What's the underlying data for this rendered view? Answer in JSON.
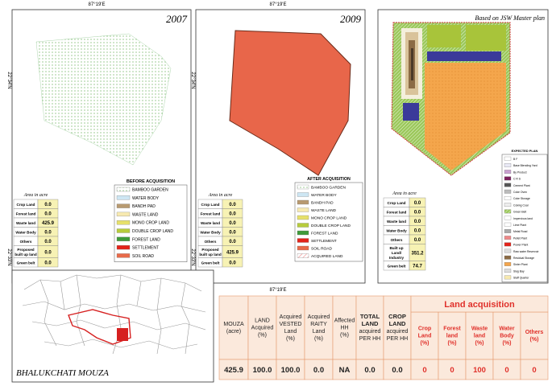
{
  "coords": {
    "lon": "87°19'E",
    "lat_north": "22°34'N",
    "lat_south": "22°33'N"
  },
  "panels": [
    {
      "title": "2007",
      "area_title": "Area in acre",
      "area_rows": [
        [
          "Crop Land",
          "0.0"
        ],
        [
          "Forest land",
          "0.0"
        ],
        [
          "Waste land",
          "425.9"
        ],
        [
          "Water Body",
          "0.0"
        ],
        [
          "Others",
          "0.0"
        ],
        [
          [
            "Proposed",
            "built up land"
          ],
          "0.0"
        ],
        [
          "Green belt",
          "0.0"
        ]
      ],
      "legend_title": "BEFORE ACQUISITION",
      "legend": [
        "BAMBOO GARDEN",
        "WATER BODY",
        "BANDH PAD",
        "WASTE LAND",
        "MONO CROP LAND",
        "DOUBLE CROP LAND",
        "FOREST LAND",
        "SETTLEMENT",
        "SOIL ROAD"
      ]
    },
    {
      "title": "2009",
      "area_title": "Area in acre",
      "area_rows": [
        [
          "Crop Land",
          "0.0"
        ],
        [
          "Forest land",
          "0.0"
        ],
        [
          "Waste land",
          "0.0"
        ],
        [
          "Water Body",
          "0.0"
        ],
        [
          "Others",
          "0.0"
        ],
        [
          [
            "Proposed",
            "built up land"
          ],
          "425.9"
        ],
        [
          "Green belt",
          "0.0"
        ]
      ],
      "legend_title": "AFTER ACQUISITION",
      "legend": [
        "BAMBOO GARDEN",
        "WATER BODY",
        "BANDH PAD",
        "WASTE LAND",
        "MONO CROP LAND",
        "DOUBLE CROP LAND",
        "FOREST LAND",
        "SETTLEMENT",
        "SOIL ROAD",
        "ACQUIRED LAND"
      ]
    },
    {
      "title": "Based on JSW Master plan",
      "area_title": "Area in acre",
      "area_rows": [
        [
          "Crop Land",
          "0.0"
        ],
        [
          "Forest land",
          "0.0"
        ],
        [
          "Waste land",
          "0.0"
        ],
        [
          "Water Body",
          "0.0"
        ],
        [
          "Others",
          "0.0"
        ],
        [
          [
            "Built up",
            "Land/",
            "Industry"
          ],
          "351.2"
        ],
        [
          "Green belt",
          "74.7"
        ]
      ],
      "legend_title": "EXPECTED PLAN",
      "legend": [
        "B F",
        "Base Blending Yard",
        "By Product",
        "C R S",
        "Cement Plant",
        "Coke Oven",
        "Coke Storage",
        "Coking Coal",
        "Green Belt",
        "Impervious land",
        "Lime Plant",
        "Metal Road",
        "Pellet Plant",
        "Power Plant",
        "Raw water Reservoir",
        "Residual Storage",
        "Sinter Plant",
        "Slag Bay",
        "Staff Quarter"
      ]
    }
  ],
  "mouza_map": {
    "label": "BHALUKCHATI MOUZA"
  },
  "summary_table": {
    "group_header": "Land acquisition",
    "headers": [
      [
        "MOUZA",
        "(acre)"
      ],
      [
        "LAND",
        "Acquired",
        "(%)"
      ],
      [
        "Acquired",
        "VESTED",
        "Land",
        "(%)"
      ],
      [
        "Acquired",
        "RAITY",
        "Land",
        "(%)"
      ],
      [
        "Affected",
        "HH",
        "(%)"
      ],
      [
        "TOTAL",
        "LAND",
        "acquired",
        "PER HH"
      ],
      [
        "CROP",
        "LAND",
        "acquired",
        "PER HH"
      ],
      [
        "Crop",
        "Land",
        "(%)"
      ],
      [
        "Forest",
        "land",
        "(%)"
      ],
      [
        "Waste",
        "land",
        "(%)"
      ],
      [
        "Water",
        "Body",
        "(%)"
      ],
      [
        "Others",
        "(%)"
      ]
    ],
    "values": [
      "425.9",
      "100.0",
      "100.0",
      "0.0",
      "NA",
      "0.0",
      "0.0",
      "0",
      "0",
      "100",
      "0",
      "0"
    ]
  }
}
